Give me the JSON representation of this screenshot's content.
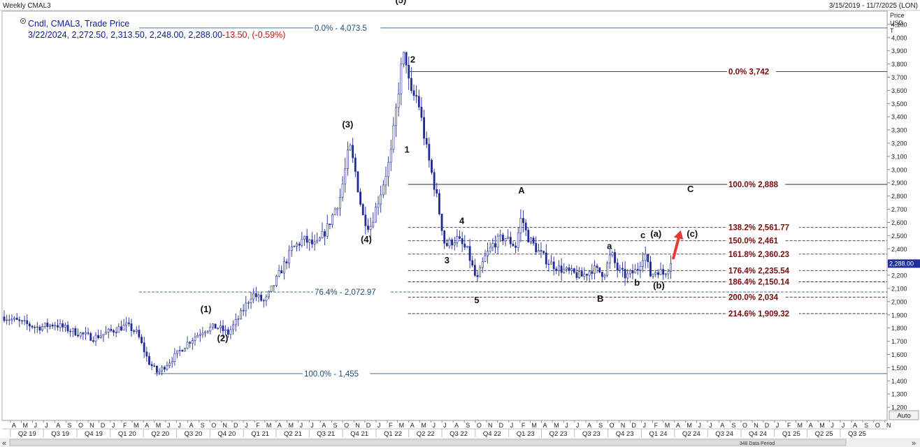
{
  "window": {
    "title": "Weekly CMAL3",
    "date_range": "3/15/2019 - 11/7/2025 (LON)",
    "auto_label": "Auto",
    "data_period": "348 Data Period",
    "scroll_left": "«",
    "scroll_right": "»"
  },
  "legend": {
    "series_label": "Cndl, CMAL3, Trade Price",
    "ohlc_values": "3/22/2024, 2,272.50, 2,313.50, 2,248.00, 2,288.00",
    "change": "-13.50, (-0.59%)"
  },
  "axis": {
    "y_title": [
      "Price",
      "USD",
      "T"
    ],
    "current_price_tag": "2,288.00"
  },
  "colors": {
    "candle": "#1f2a96",
    "fib_blue": "#1f4e79",
    "fib_red": "#7a0b0b",
    "legend_blue": "#0a1a9c",
    "change_red": "#d01010",
    "arrow": "#e8393a"
  },
  "chart_data": {
    "type": "candlestick",
    "frequency": "weekly",
    "symbol": "CMAL3",
    "currency": "USD",
    "ylim": [
      1100,
      4200
    ],
    "y_ticks": [
      1200,
      1300,
      1400,
      1500,
      1600,
      1700,
      1800,
      1900,
      2000,
      2100,
      2200,
      2300,
      2400,
      2500,
      2600,
      2700,
      2800,
      2900,
      3000,
      3100,
      3200,
      3300,
      3400,
      3500,
      3600,
      3700,
      3800,
      3900,
      4000,
      4100
    ],
    "y_tick_labels": [
      "1,200",
      "1,300",
      "1,400",
      "1,500",
      "1,600",
      "1,700",
      "1,800",
      "1,900",
      "2,000",
      "2,100",
      "2,200",
      "2,300",
      "2,400",
      "2,500",
      "2,600",
      "2,700",
      "2,800",
      "2,900",
      "3,000",
      "3,100",
      "3,200",
      "3,300",
      "3,400",
      "3,500",
      "3,600",
      "3,700",
      "3,800",
      "3,900",
      "4,000",
      "4,100"
    ],
    "x_range": [
      "2019-03-15",
      "2025-11-07"
    ],
    "month_ticks": [
      {
        "d": "2019-04",
        "l": "A"
      },
      {
        "d": "2019-05",
        "l": "M"
      },
      {
        "d": "2019-06",
        "l": "J"
      },
      {
        "d": "2019-07",
        "l": "J"
      },
      {
        "d": "2019-08",
        "l": "A"
      },
      {
        "d": "2019-09",
        "l": "S"
      },
      {
        "d": "2019-10",
        "l": "O"
      },
      {
        "d": "2019-11",
        "l": "N"
      },
      {
        "d": "2019-12",
        "l": "D"
      },
      {
        "d": "2020-01",
        "l": "J"
      },
      {
        "d": "2020-02",
        "l": "F"
      },
      {
        "d": "2020-03",
        "l": "M"
      },
      {
        "d": "2020-04",
        "l": "A"
      },
      {
        "d": "2020-05",
        "l": "M"
      },
      {
        "d": "2020-06",
        "l": "J"
      },
      {
        "d": "2020-07",
        "l": "J"
      },
      {
        "d": "2020-08",
        "l": "A"
      },
      {
        "d": "2020-09",
        "l": "S"
      },
      {
        "d": "2020-10",
        "l": "O"
      },
      {
        "d": "2020-11",
        "l": "N"
      },
      {
        "d": "2020-12",
        "l": "D"
      },
      {
        "d": "2021-01",
        "l": "J"
      },
      {
        "d": "2021-02",
        "l": "F"
      },
      {
        "d": "2021-03",
        "l": "M"
      },
      {
        "d": "2021-04",
        "l": "A"
      },
      {
        "d": "2021-05",
        "l": "M"
      },
      {
        "d": "2021-06",
        "l": "J"
      },
      {
        "d": "2021-07",
        "l": "J"
      },
      {
        "d": "2021-08",
        "l": "A"
      },
      {
        "d": "2021-09",
        "l": "S"
      },
      {
        "d": "2021-10",
        "l": "O"
      },
      {
        "d": "2021-11",
        "l": "N"
      },
      {
        "d": "2021-12",
        "l": "D"
      },
      {
        "d": "2022-01",
        "l": "J"
      },
      {
        "d": "2022-02",
        "l": "F"
      },
      {
        "d": "2022-03",
        "l": "M"
      },
      {
        "d": "2022-04",
        "l": "A"
      },
      {
        "d": "2022-05",
        "l": "M"
      },
      {
        "d": "2022-06",
        "l": "J"
      },
      {
        "d": "2022-07",
        "l": "J"
      },
      {
        "d": "2022-08",
        "l": "A"
      },
      {
        "d": "2022-09",
        "l": "S"
      },
      {
        "d": "2022-10",
        "l": "O"
      },
      {
        "d": "2022-11",
        "l": "N"
      },
      {
        "d": "2022-12",
        "l": "D"
      },
      {
        "d": "2023-01",
        "l": "J"
      },
      {
        "d": "2023-02",
        "l": "F"
      },
      {
        "d": "2023-03",
        "l": "M"
      },
      {
        "d": "2023-04",
        "l": "A"
      },
      {
        "d": "2023-05",
        "l": "M"
      },
      {
        "d": "2023-06",
        "l": "J"
      },
      {
        "d": "2023-07",
        "l": "J"
      },
      {
        "d": "2023-08",
        "l": "A"
      },
      {
        "d": "2023-09",
        "l": "S"
      },
      {
        "d": "2023-10",
        "l": "O"
      },
      {
        "d": "2023-11",
        "l": "N"
      },
      {
        "d": "2023-12",
        "l": "D"
      },
      {
        "d": "2024-01",
        "l": "J"
      },
      {
        "d": "2024-02",
        "l": "F"
      },
      {
        "d": "2024-03",
        "l": "M"
      },
      {
        "d": "2024-04",
        "l": "A"
      },
      {
        "d": "2024-05",
        "l": "M"
      },
      {
        "d": "2024-06",
        "l": "J"
      },
      {
        "d": "2024-07",
        "l": "J"
      },
      {
        "d": "2024-08",
        "l": "A"
      },
      {
        "d": "2024-09",
        "l": "S"
      },
      {
        "d": "2024-10",
        "l": "O"
      },
      {
        "d": "2024-11",
        "l": "N"
      },
      {
        "d": "2024-12",
        "l": "D"
      },
      {
        "d": "2025-01",
        "l": "J"
      },
      {
        "d": "2025-02",
        "l": "F"
      },
      {
        "d": "2025-03",
        "l": "M"
      },
      {
        "d": "2025-04",
        "l": "A"
      },
      {
        "d": "2025-05",
        "l": "M"
      },
      {
        "d": "2025-06",
        "l": "J"
      },
      {
        "d": "2025-07",
        "l": "J"
      },
      {
        "d": "2025-08",
        "l": "A"
      },
      {
        "d": "2025-09",
        "l": "S"
      },
      {
        "d": "2025-10",
        "l": "O"
      },
      {
        "d": "2025-11",
        "l": "N"
      }
    ],
    "quarter_ticks": [
      {
        "d": "2019-04",
        "l": "Q2 19"
      },
      {
        "d": "2019-07",
        "l": "Q3 19"
      },
      {
        "d": "2019-10",
        "l": "Q4 19"
      },
      {
        "d": "2020-01",
        "l": "Q1 20"
      },
      {
        "d": "2020-04",
        "l": "Q2 20"
      },
      {
        "d": "2020-07",
        "l": "Q3 20"
      },
      {
        "d": "2020-10",
        "l": "Q4 20"
      },
      {
        "d": "2021-01",
        "l": "Q1 21"
      },
      {
        "d": "2021-04",
        "l": "Q2 21"
      },
      {
        "d": "2021-07",
        "l": "Q3 21"
      },
      {
        "d": "2021-10",
        "l": "Q4 21"
      },
      {
        "d": "2022-01",
        "l": "Q1 22"
      },
      {
        "d": "2022-04",
        "l": "Q2 22"
      },
      {
        "d": "2022-07",
        "l": "Q3 22"
      },
      {
        "d": "2022-10",
        "l": "Q4 22"
      },
      {
        "d": "2023-01",
        "l": "Q1 23"
      },
      {
        "d": "2023-04",
        "l": "Q2 23"
      },
      {
        "d": "2023-07",
        "l": "Q3 23"
      },
      {
        "d": "2023-10",
        "l": "Q4 23"
      },
      {
        "d": "2024-01",
        "l": "Q1 24"
      },
      {
        "d": "2024-04",
        "l": "Q2 24"
      },
      {
        "d": "2024-07",
        "l": "Q3 24"
      },
      {
        "d": "2024-10",
        "l": "Q4 24"
      },
      {
        "d": "2025-01",
        "l": "Q1 25"
      },
      {
        "d": "2025-04",
        "l": "Q2 25"
      },
      {
        "d": "2025-07",
        "l": "Q3 25"
      }
    ],
    "price_path": [
      [
        "2019-03-15",
        1885
      ],
      [
        "2019-05-01",
        1840
      ],
      [
        "2019-06-15",
        1805
      ],
      [
        "2019-08-01",
        1830
      ],
      [
        "2019-09-15",
        1780
      ],
      [
        "2019-11-15",
        1725
      ],
      [
        "2020-01-01",
        1775
      ],
      [
        "2020-02-15",
        1820
      ],
      [
        "2020-03-15",
        1760
      ],
      [
        "2020-04-15",
        1545
      ],
      [
        "2020-05-10",
        1460
      ],
      [
        "2020-06-15",
        1555
      ],
      [
        "2020-08-01",
        1690
      ],
      [
        "2020-09-15",
        1790
      ],
      [
        "2020-10-20",
        1810
      ],
      [
        "2020-11-20",
        1760
      ],
      [
        "2020-12-20",
        1880
      ],
      [
        "2021-01-25",
        2060
      ],
      [
        "2021-03-01",
        1995
      ],
      [
        "2021-04-10",
        2210
      ],
      [
        "2021-05-15",
        2400
      ],
      [
        "2021-06-15",
        2470
      ],
      [
        "2021-07-20",
        2420
      ],
      [
        "2021-08-20",
        2560
      ],
      [
        "2021-09-25",
        2800
      ],
      [
        "2021-10-20",
        3180
      ],
      [
        "2021-11-05",
        2980
      ],
      [
        "2021-11-25",
        2650
      ],
      [
        "2021-12-15",
        2560
      ],
      [
        "2022-01-15",
        2840
      ],
      [
        "2022-02-10",
        3100
      ],
      [
        "2022-03-10",
        3750
      ],
      [
        "2022-03-22",
        3900
      ],
      [
        "2022-04-05",
        3560
      ],
      [
        "2022-04-25",
        3550
      ],
      [
        "2022-05-20",
        3150
      ],
      [
        "2022-06-15",
        2820
      ],
      [
        "2022-07-10",
        2420
      ],
      [
        "2022-08-10",
        2480
      ],
      [
        "2022-09-10",
        2380
      ],
      [
        "2022-10-05",
        2150
      ],
      [
        "2022-10-25",
        2320
      ],
      [
        "2022-11-20",
        2440
      ],
      [
        "2022-12-20",
        2490
      ],
      [
        "2023-01-20",
        2420
      ],
      [
        "2023-02-05",
        2650
      ],
      [
        "2023-02-20",
        2500
      ],
      [
        "2023-03-20",
        2390
      ],
      [
        "2023-04-20",
        2300
      ],
      [
        "2023-05-20",
        2250
      ],
      [
        "2023-06-20",
        2220
      ],
      [
        "2023-07-20",
        2190
      ],
      [
        "2023-08-20",
        2250
      ],
      [
        "2023-09-20",
        2210
      ],
      [
        "2023-10-10",
        2370
      ],
      [
        "2023-10-25",
        2250
      ],
      [
        "2023-11-20",
        2190
      ],
      [
        "2023-12-20",
        2240
      ],
      [
        "2024-01-10",
        2380
      ],
      [
        "2024-01-25",
        2200
      ],
      [
        "2024-02-15",
        2240
      ],
      [
        "2024-03-01",
        2210
      ],
      [
        "2024-03-22",
        2288
      ]
    ],
    "fib_lines": [
      {
        "name": "fib-retrace-0",
        "ratio": "0.0%",
        "value": "4,073.5",
        "price": 4073.5,
        "start": "2020-03-20",
        "style": "solid",
        "group": "blue"
      },
      {
        "name": "fib-retrace-76",
        "ratio": "76.4%",
        "value": "2,072.97",
        "price": 2072.97,
        "start": "2020-03-20",
        "style": "dashed",
        "group": "blue"
      },
      {
        "name": "fib-retrace-100",
        "ratio": "100.0%",
        "value": "1,455",
        "price": 1455,
        "start": "2020-05-01",
        "style": "solid",
        "group": "blue"
      },
      {
        "name": "fib-ext-0",
        "ratio": "0.0%",
        "value": "3,742",
        "price": 3742,
        "start": "2022-03-30",
        "style": "solid",
        "group": "red"
      },
      {
        "name": "fib-ext-100",
        "ratio": "100.0%",
        "value": "2,888",
        "price": 2888,
        "start": "2022-03-30",
        "style": "solid",
        "group": "red"
      },
      {
        "name": "fib-ext-138",
        "ratio": "138.2%",
        "value": "2,561.77",
        "price": 2561.77,
        "start": "2022-03-30",
        "style": "dashed",
        "group": "red"
      },
      {
        "name": "fib-ext-150",
        "ratio": "150.0%",
        "value": "2,461",
        "price": 2461,
        "start": "2022-03-30",
        "style": "dashed",
        "group": "red"
      },
      {
        "name": "fib-ext-161",
        "ratio": "161.8%",
        "value": "2,360.23",
        "price": 2360.23,
        "start": "2022-03-30",
        "style": "dashed",
        "group": "red"
      },
      {
        "name": "fib-ext-176",
        "ratio": "176.4%",
        "value": "2,235.54",
        "price": 2235.54,
        "start": "2022-03-30",
        "style": "dashed",
        "group": "red"
      },
      {
        "name": "fib-ext-186",
        "ratio": "186.4%",
        "value": "2,150.14",
        "price": 2150.14,
        "start": "2022-03-30",
        "style": "dashed",
        "group": "red"
      },
      {
        "name": "fib-ext-200",
        "ratio": "200.0%",
        "value": "2,034",
        "price": 2034,
        "start": "2022-03-30",
        "style": "dashed",
        "group": "red"
      },
      {
        "name": "fib-ext-214",
        "ratio": "214.6%",
        "value": "1,909.32",
        "price": 1909.32,
        "start": "2022-03-30",
        "style": "dashed",
        "group": "red"
      }
    ],
    "wave_labels": [
      {
        "text": "(1)",
        "d": "2020-09-20",
        "p": 1920
      },
      {
        "text": "(2)",
        "d": "2020-11-05",
        "p": 1700
      },
      {
        "text": "(3)",
        "d": "2021-10-15",
        "p": 3320
      },
      {
        "text": "(4)",
        "d": "2021-12-05",
        "p": 2450
      },
      {
        "text": "(5)",
        "d": "2022-03-10",
        "p": 4260
      },
      {
        "text": "1",
        "d": "2022-03-27",
        "p": 3130
      },
      {
        "text": "2",
        "d": "2022-04-12",
        "p": 3810
      },
      {
        "text": "3",
        "d": "2022-07-15",
        "p": 2290
      },
      {
        "text": "4",
        "d": "2022-08-25",
        "p": 2590
      },
      {
        "text": "5",
        "d": "2022-10-05",
        "p": 1990
      },
      {
        "text": "A",
        "d": "2023-02-05",
        "p": 2820
      },
      {
        "text": "B",
        "d": "2023-09-10",
        "p": 2000
      },
      {
        "text": "a",
        "d": "2023-10-05",
        "p": 2400
      },
      {
        "text": "b",
        "d": "2023-12-20",
        "p": 2120
      },
      {
        "text": "c",
        "d": "2024-01-05",
        "p": 2480
      },
      {
        "text": "(a)",
        "d": "2024-02-10",
        "p": 2490
      },
      {
        "text": "(b)",
        "d": "2024-02-18",
        "p": 2100
      },
      {
        "text": "(c)",
        "d": "2024-05-20",
        "p": 2490
      },
      {
        "text": "C",
        "d": "2024-05-15",
        "p": 2830
      }
    ],
    "projection_arrow": {
      "from": [
        "2024-03-29",
        2330
      ],
      "to": [
        "2024-04-18",
        2540
      ]
    }
  }
}
